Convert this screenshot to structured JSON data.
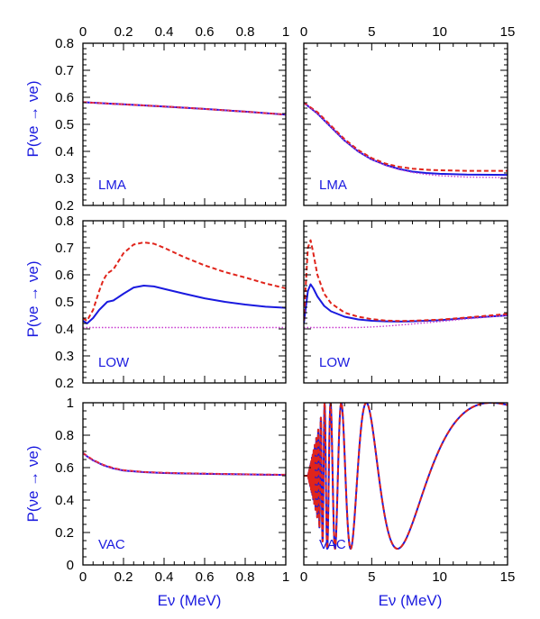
{
  "figure": {
    "x_title_left": "Eν (MeV)",
    "x_title_right": "Eν (MeV)",
    "y_title": "P(νe → νe)"
  },
  "colors": {
    "solid": "#1a1adf",
    "dashed": "#e0241b",
    "dotted": "#c83ad0",
    "text_blue": "#1a1adf"
  },
  "chart_data": [
    {
      "id": "lma-left",
      "type": "line",
      "label": "LMA",
      "xlim": [
        0,
        1
      ],
      "ylim": [
        0.2,
        0.8
      ],
      "xticks": [
        0,
        0.2,
        0.4,
        0.6,
        0.8,
        1
      ],
      "xtick_labels": [
        "0",
        "0.2",
        "0.4",
        "0.6",
        "0.8",
        "1"
      ],
      "yticks": [
        0.2,
        0.3,
        0.4,
        0.5,
        0.6,
        0.7,
        0.8
      ],
      "ytick_labels": [
        "0.2",
        "0.3",
        "0.4",
        "0.5",
        "0.6",
        "0.7",
        "0.8"
      ],
      "x_ticklabels_position": "top",
      "series": [
        {
          "style": "solid",
          "x": [
            0,
            0.2,
            0.4,
            0.6,
            0.8,
            1
          ],
          "y": [
            0.582,
            0.574,
            0.566,
            0.557,
            0.547,
            0.536
          ]
        },
        {
          "style": "dashed",
          "x": [
            0,
            0.2,
            0.4,
            0.6,
            0.8,
            1
          ],
          "y": [
            0.582,
            0.574,
            0.566,
            0.557,
            0.547,
            0.536
          ]
        },
        {
          "style": "dotted",
          "x": [
            0,
            0.2,
            0.4,
            0.6,
            0.8,
            1
          ],
          "y": [
            0.582,
            0.574,
            0.566,
            0.557,
            0.547,
            0.536
          ]
        }
      ]
    },
    {
      "id": "lma-right",
      "type": "line",
      "label": "LMA",
      "xlim": [
        0,
        15
      ],
      "ylim": [
        0.2,
        0.8
      ],
      "xticks": [
        0,
        5,
        10,
        15
      ],
      "xtick_labels": [
        "0",
        "5",
        "10",
        "15"
      ],
      "yticks": [
        0.2,
        0.3,
        0.4,
        0.5,
        0.6,
        0.7,
        0.8
      ],
      "ytick_labels": [],
      "x_ticklabels_position": "top",
      "series": [
        {
          "style": "solid",
          "x": [
            0,
            1,
            2,
            3,
            4,
            5,
            6,
            7,
            8,
            9,
            10,
            12,
            15
          ],
          "y": [
            0.58,
            0.54,
            0.49,
            0.44,
            0.4,
            0.37,
            0.35,
            0.335,
            0.325,
            0.32,
            0.317,
            0.314,
            0.313
          ]
        },
        {
          "style": "dashed",
          "x": [
            0,
            1,
            2,
            3,
            4,
            5,
            6,
            7,
            8,
            9,
            10,
            12,
            15
          ],
          "y": [
            0.58,
            0.545,
            0.495,
            0.445,
            0.405,
            0.375,
            0.355,
            0.343,
            0.336,
            0.332,
            0.33,
            0.328,
            0.328
          ]
        },
        {
          "style": "dotted",
          "x": [
            0,
            1,
            2,
            3,
            4,
            5,
            6,
            7,
            8,
            9,
            10,
            12,
            15
          ],
          "y": [
            0.58,
            0.54,
            0.49,
            0.44,
            0.4,
            0.37,
            0.348,
            0.333,
            0.322,
            0.315,
            0.31,
            0.305,
            0.303
          ]
        }
      ]
    },
    {
      "id": "low-left",
      "type": "line",
      "label": "LOW",
      "xlim": [
        0,
        1
      ],
      "ylim": [
        0.2,
        0.8
      ],
      "xticks": [
        0,
        0.2,
        0.4,
        0.6,
        0.8,
        1
      ],
      "xtick_labels": [],
      "yticks": [
        0.2,
        0.3,
        0.4,
        0.5,
        0.6,
        0.7,
        0.8
      ],
      "ytick_labels": [
        "0.2",
        "0.3",
        "0.4",
        "0.5",
        "0.6",
        "0.7",
        "0.8"
      ],
      "series": [
        {
          "style": "solid",
          "x": [
            0,
            0.02,
            0.05,
            0.08,
            0.1,
            0.12,
            0.15,
            0.2,
            0.25,
            0.3,
            0.35,
            0.4,
            0.5,
            0.6,
            0.7,
            0.8,
            0.9,
            1.0
          ],
          "y": [
            0.43,
            0.42,
            0.44,
            0.47,
            0.485,
            0.5,
            0.505,
            0.53,
            0.553,
            0.56,
            0.557,
            0.548,
            0.53,
            0.513,
            0.5,
            0.49,
            0.482,
            0.478
          ]
        },
        {
          "style": "dashed",
          "x": [
            0,
            0.02,
            0.05,
            0.08,
            0.1,
            0.12,
            0.15,
            0.2,
            0.25,
            0.3,
            0.35,
            0.4,
            0.5,
            0.6,
            0.7,
            0.8,
            0.9,
            1.0
          ],
          "y": [
            0.44,
            0.43,
            0.47,
            0.54,
            0.58,
            0.605,
            0.62,
            0.68,
            0.712,
            0.72,
            0.715,
            0.7,
            0.665,
            0.635,
            0.61,
            0.59,
            0.568,
            0.55
          ]
        },
        {
          "style": "dotted",
          "x": [
            0,
            1
          ],
          "y": [
            0.405,
            0.405
          ]
        }
      ]
    },
    {
      "id": "low-right",
      "type": "line",
      "label": "LOW",
      "xlim": [
        0,
        15
      ],
      "ylim": [
        0.2,
        0.8
      ],
      "xticks": [
        0,
        5,
        10,
        15
      ],
      "xtick_labels": [],
      "yticks": [
        0.2,
        0.3,
        0.4,
        0.5,
        0.6,
        0.7,
        0.8
      ],
      "ytick_labels": [],
      "series": [
        {
          "style": "solid",
          "x": [
            0,
            0.1,
            0.3,
            0.5,
            0.7,
            1,
            1.5,
            2,
            3,
            4,
            5,
            6,
            7,
            8,
            10,
            12,
            15
          ],
          "y": [
            0.42,
            0.46,
            0.54,
            0.565,
            0.55,
            0.52,
            0.485,
            0.465,
            0.445,
            0.435,
            0.43,
            0.428,
            0.427,
            0.428,
            0.432,
            0.44,
            0.45
          ]
        },
        {
          "style": "dashed",
          "x": [
            0,
            0.1,
            0.3,
            0.5,
            0.7,
            1,
            1.5,
            2,
            3,
            4,
            5,
            6,
            7,
            8,
            10,
            12,
            15
          ],
          "y": [
            0.43,
            0.52,
            0.7,
            0.728,
            0.68,
            0.6,
            0.53,
            0.495,
            0.46,
            0.445,
            0.436,
            0.431,
            0.429,
            0.43,
            0.434,
            0.442,
            0.455
          ]
        },
        {
          "style": "dotted",
          "x": [
            0,
            2,
            4,
            5,
            6,
            7,
            8,
            10,
            12,
            15
          ],
          "y": [
            0.405,
            0.405,
            0.405,
            0.407,
            0.41,
            0.414,
            0.418,
            0.427,
            0.437,
            0.45
          ]
        }
      ]
    },
    {
      "id": "vac-left",
      "type": "line",
      "label": "VAC",
      "xlim": [
        0,
        1
      ],
      "ylim": [
        0,
        1
      ],
      "xticks": [
        0,
        0.2,
        0.4,
        0.6,
        0.8,
        1
      ],
      "xtick_labels": [
        "0",
        "0.2",
        "0.4",
        "0.6",
        "0.8",
        "1"
      ],
      "yticks": [
        0,
        0.2,
        0.4,
        0.6,
        0.8,
        1
      ],
      "ytick_labels": [
        "0",
        "0.2",
        "0.4",
        "0.6",
        "0.8",
        "1"
      ],
      "series": [
        {
          "style": "solid",
          "x": [
            0,
            0.02,
            0.05,
            0.1,
            0.15,
            0.2,
            0.3,
            0.4,
            0.5,
            0.6,
            0.7,
            0.8,
            0.9,
            1.0
          ],
          "y": [
            0.69,
            0.67,
            0.645,
            0.615,
            0.595,
            0.582,
            0.572,
            0.567,
            0.564,
            0.562,
            0.56,
            0.558,
            0.556,
            0.555
          ]
        },
        {
          "style": "dashed",
          "x": [
            0,
            0.02,
            0.05,
            0.1,
            0.15,
            0.2,
            0.3,
            0.4,
            0.5,
            0.6,
            0.7,
            0.8,
            0.9,
            1.0
          ],
          "y": [
            0.69,
            0.672,
            0.647,
            0.617,
            0.597,
            0.584,
            0.573,
            0.568,
            0.565,
            0.563,
            0.561,
            0.559,
            0.557,
            0.556
          ]
        },
        {
          "style": "dotted",
          "x": [
            0,
            0.02,
            0.05,
            0.1,
            0.15,
            0.2,
            0.3,
            0.4,
            0.5,
            0.6,
            0.7,
            0.8,
            0.9,
            1.0
          ],
          "y": [
            0.69,
            0.67,
            0.645,
            0.615,
            0.595,
            0.582,
            0.572,
            0.567,
            0.564,
            0.562,
            0.56,
            0.558,
            0.556,
            0.555
          ]
        }
      ]
    },
    {
      "id": "vac-right",
      "type": "line",
      "label": "VAC",
      "xlim": [
        0,
        15
      ],
      "ylim": [
        0,
        1
      ],
      "xticks": [
        0,
        5,
        10,
        15
      ],
      "xtick_labels": [
        "0",
        "5",
        "10",
        "15"
      ],
      "yticks": [
        0,
        0.2,
        0.4,
        0.6,
        0.8,
        1
      ],
      "ytick_labels": [],
      "oscillation": {
        "mean": 0.55,
        "amplitude": 0.45,
        "peak_energy_MeV": 13.8,
        "phase_at_peak": 0,
        "damp_below_MeV": 1.5
      },
      "series": [
        {
          "style": "solid"
        },
        {
          "style": "dashed"
        }
      ]
    }
  ]
}
